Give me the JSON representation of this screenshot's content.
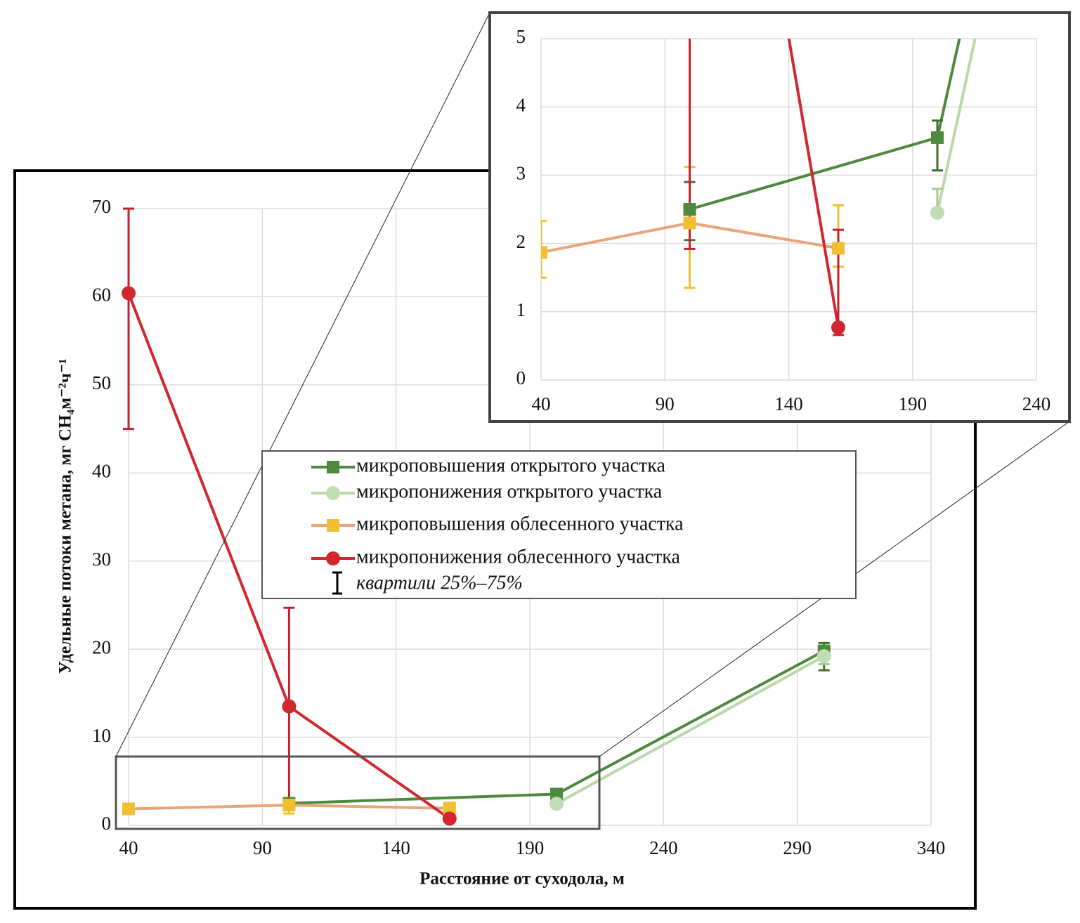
{
  "chart_data": [
    {
      "type": "line",
      "x_label": "Расстояние от суходола, м",
      "y_label": "Удельные потоки метана, мг CH₄м⁻²ч⁻¹",
      "xlim": [
        40,
        340
      ],
      "xticks": [
        40,
        90,
        140,
        190,
        240,
        290,
        340
      ],
      "ylim": [
        0,
        70
      ],
      "yticks": [
        0,
        10,
        20,
        30,
        40,
        50,
        60,
        70
      ],
      "grid": true,
      "error_bar_label": "квартили 25%–75%",
      "series": [
        {
          "name": "микроповышения открытого участка",
          "marker": "square",
          "color": "#4e8a3e",
          "marker_color": "#4e8a3e",
          "error_color": "#3d7232",
          "x": [
            100,
            200,
            300
          ],
          "values": [
            2.5,
            3.55,
            19.8
          ],
          "low": [
            2.05,
            3.07,
            17.6
          ],
          "high": [
            2.9,
            3.8,
            20.7
          ]
        },
        {
          "name": "микропонижения открытого участка",
          "marker": "circle",
          "color": "#b9d9a9",
          "marker_color": "#c2dcb4",
          "error_color": "#a3c992",
          "x": [
            200,
            300
          ],
          "values": [
            2.45,
            19.2
          ],
          "low": [
            2.4,
            18.3
          ],
          "high": [
            2.8,
            20.1
          ]
        },
        {
          "name": "микроповышения облесенного участка",
          "marker": "square",
          "color": "#e8a57a",
          "marker_color": "#f0c030",
          "error_color": "#f0c030",
          "x": [
            40,
            100,
            160
          ],
          "values": [
            1.87,
            2.3,
            1.93
          ],
          "low": [
            1.5,
            1.35,
            1.66
          ],
          "high": [
            2.33,
            3.12,
            2.56
          ]
        },
        {
          "name": "микропонижения облесенного участка",
          "marker": "circle",
          "color": "#d0282e",
          "marker_color": "#d0282e",
          "error_color": "#c8202a",
          "x": [
            40,
            100,
            160
          ],
          "values": [
            60.4,
            13.5,
            0.77
          ],
          "low": [
            45,
            1.92,
            0.66
          ],
          "high": [
            70,
            24.7,
            2.2
          ]
        }
      ]
    },
    {
      "type": "inset",
      "xlim": [
        40,
        240
      ],
      "xticks": [
        40,
        90,
        140,
        190,
        240
      ],
      "ylim": [
        0,
        5
      ],
      "yticks": [
        0,
        1,
        2,
        3,
        4,
        5
      ],
      "grid": true
    }
  ]
}
